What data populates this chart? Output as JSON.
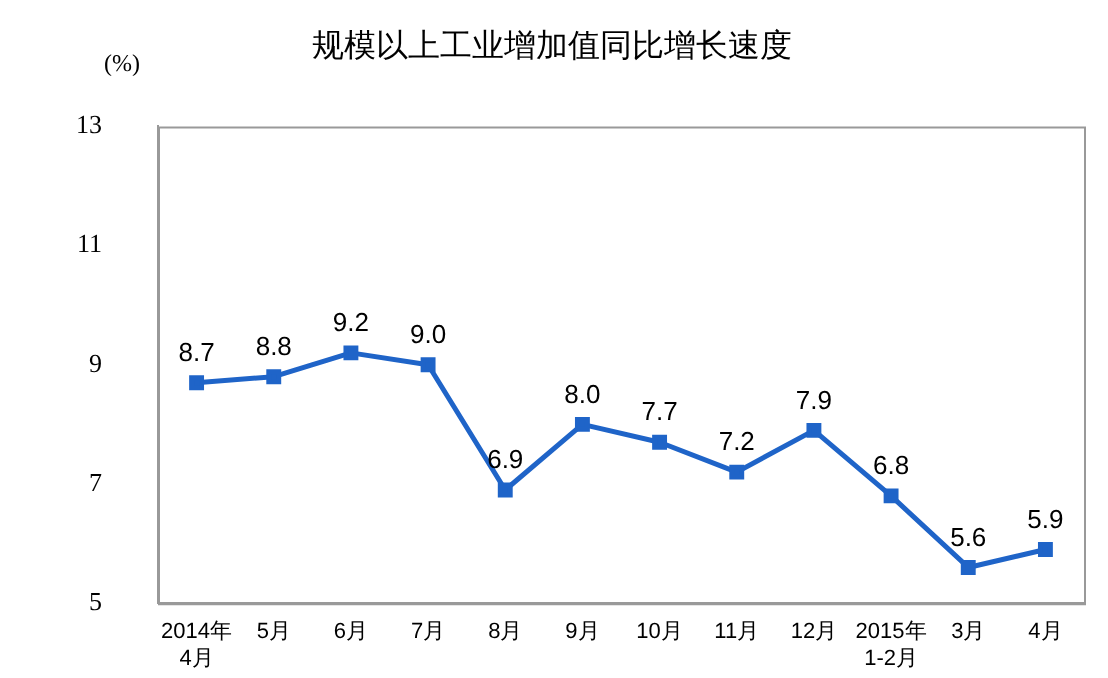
{
  "chart_data": {
    "type": "line",
    "title": "规模以上工业增加值同比增长速度",
    "ylabel": "(%)",
    "categories": [
      "2014年\n4月",
      "5月",
      "6月",
      "7月",
      "8月",
      "9月",
      "10月",
      "11月",
      "12月",
      "2015年\n1-2月",
      "3月",
      "4月"
    ],
    "series": [
      {
        "color": "#1f64c8",
        "values": [
          8.7,
          8.8,
          9.2,
          9.0,
          6.9,
          8.0,
          7.7,
          7.2,
          7.9,
          6.8,
          5.6,
          5.9
        ],
        "value_labels": [
          "8.7",
          "8.8",
          "9.2",
          "9.0",
          "6.9",
          "8.0",
          "7.7",
          "7.2",
          "7.9",
          "6.8",
          "5.6",
          "5.9"
        ]
      }
    ],
    "ylim": [
      5,
      13
    ],
    "yticks": [
      5,
      7,
      9,
      11,
      13
    ],
    "grid": false,
    "legend": false,
    "marker": "square",
    "line_style": "solid"
  }
}
